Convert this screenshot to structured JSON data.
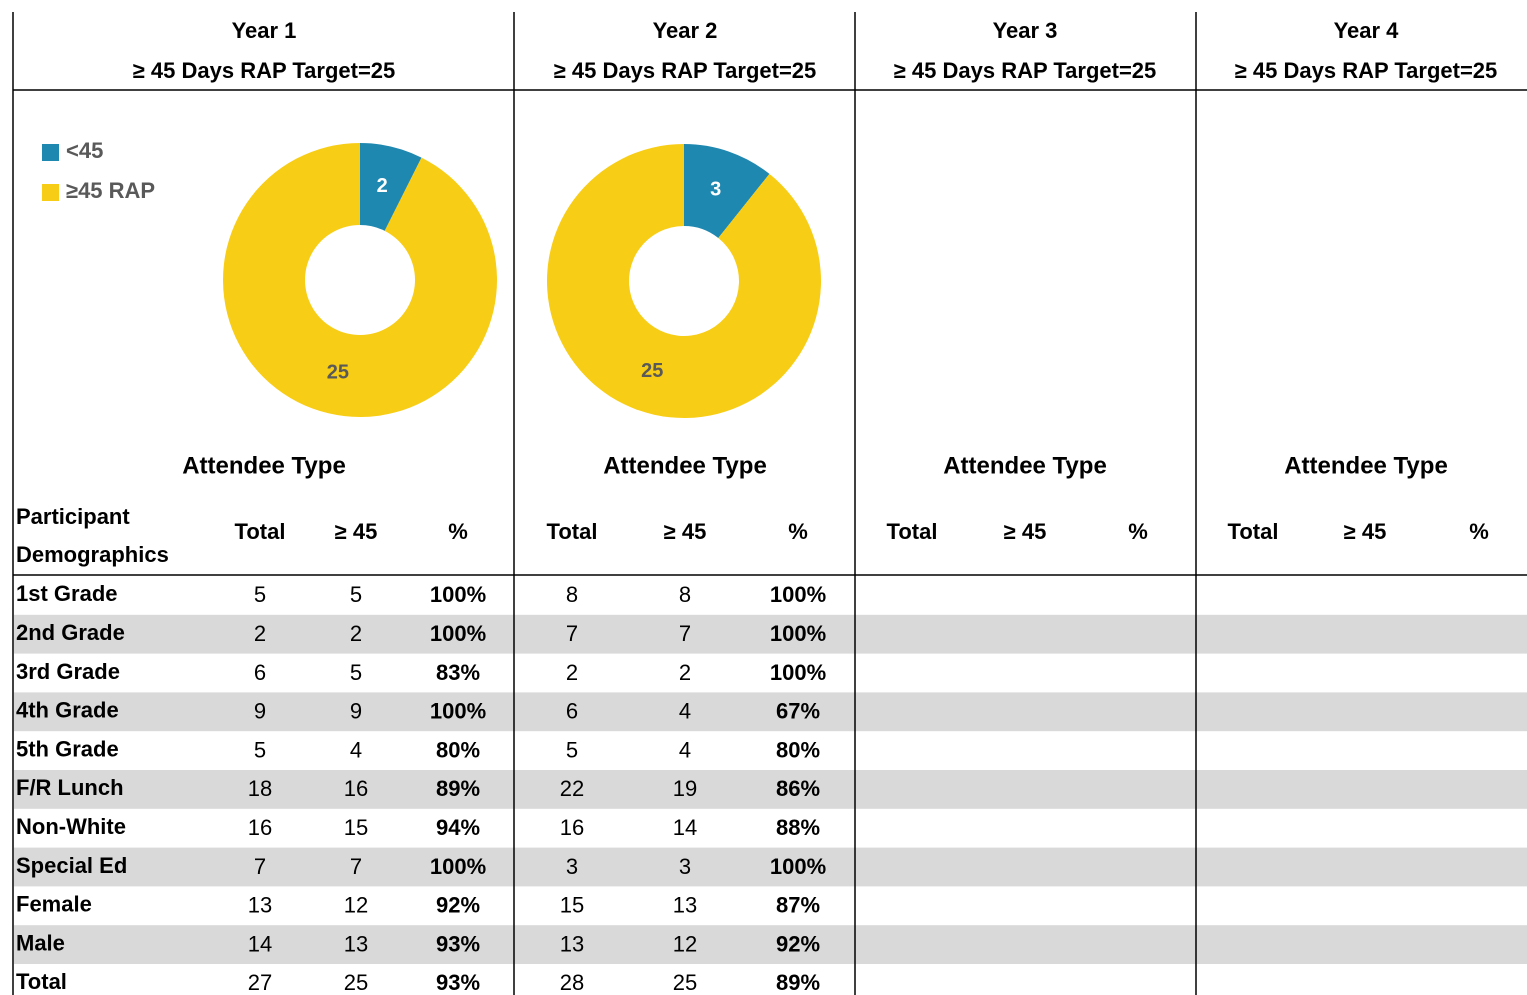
{
  "legend": {
    "labels": [
      "<45",
      "≥45 RAP"
    ],
    "colors": [
      "#1f88b0",
      "#f8cd15"
    ]
  },
  "row_header": "Participant Demographics",
  "rows": [
    "1st Grade",
    "2nd Grade",
    "3rd Grade",
    "4th Grade",
    "5th Grade",
    "F/R Lunch",
    "Non-White",
    "Special Ed",
    "Female",
    "Male",
    "Total"
  ],
  "years": [
    {
      "title": "Year 1",
      "subtitle": "≥ 45 Days RAP Target=25",
      "chart": {
        "type": "pie",
        "values": [
          2,
          25
        ]
      },
      "section": "Attendee Type",
      "columns": [
        "Total",
        "≥ 45",
        "%"
      ],
      "cells": [
        [
          5,
          5,
          "100%"
        ],
        [
          2,
          2,
          "100%"
        ],
        [
          6,
          5,
          "83%"
        ],
        [
          9,
          9,
          "100%"
        ],
        [
          5,
          4,
          "80%"
        ],
        [
          18,
          16,
          "89%"
        ],
        [
          16,
          15,
          "94%"
        ],
        [
          7,
          7,
          "100%"
        ],
        [
          13,
          12,
          "92%"
        ],
        [
          14,
          13,
          "93%"
        ],
        [
          27,
          25,
          "93%"
        ]
      ]
    },
    {
      "title": "Year 2",
      "subtitle": "≥ 45 Days RAP Target=25",
      "chart": {
        "type": "pie",
        "values": [
          3,
          25
        ]
      },
      "section": "Attendee Type",
      "columns": [
        "Total",
        "≥ 45",
        "%"
      ],
      "cells": [
        [
          8,
          8,
          "100%"
        ],
        [
          7,
          7,
          "100%"
        ],
        [
          2,
          2,
          "100%"
        ],
        [
          6,
          4,
          "67%"
        ],
        [
          5,
          4,
          "80%"
        ],
        [
          22,
          19,
          "86%"
        ],
        [
          16,
          14,
          "88%"
        ],
        [
          3,
          3,
          "100%"
        ],
        [
          15,
          13,
          "87%"
        ],
        [
          13,
          12,
          "92%"
        ],
        [
          28,
          25,
          "89%"
        ]
      ]
    },
    {
      "title": "Year 3",
      "subtitle": "≥ 45 Days RAP Target=25",
      "section": "Attendee Type",
      "columns": [
        "Total",
        "≥ 45",
        "%"
      ]
    },
    {
      "title": "Year 4",
      "subtitle": "≥ 45 Days RAP Target=25",
      "section": "Attendee Type",
      "columns": [
        "Total",
        "≥ 45",
        "%"
      ]
    }
  ]
}
